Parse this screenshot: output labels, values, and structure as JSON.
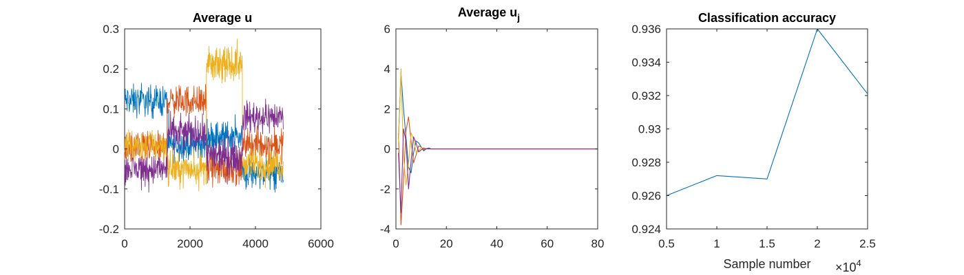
{
  "chart_data": [
    {
      "type": "line",
      "title": "Average u",
      "xlabel": "",
      "ylabel": "",
      "xlim": [
        0,
        6000
      ],
      "ylim": [
        -0.2,
        0.3
      ],
      "xticks": [
        0,
        2000,
        4000,
        6000
      ],
      "yticks": [
        -0.2,
        -0.1,
        0,
        0.1,
        0.2,
        0.3
      ],
      "xtick_labels": [
        "0",
        "2000",
        "4000",
        "6000"
      ],
      "ytick_labels": [
        "-0.2",
        "-0.1",
        "0",
        "0.1",
        "0.2",
        "0.3"
      ],
      "noise_amplitude": 0.035,
      "series": [
        {
          "color": "#0072BD",
          "segments": [
            {
              "x": [
                0,
                1300
              ],
              "mean": 0.12
            },
            {
              "x": [
                1300,
                2500
              ],
              "mean": 0.01
            },
            {
              "x": [
                2500,
                3600
              ],
              "mean": 0.03
            },
            {
              "x": [
                3600,
                4850
              ],
              "mean": -0.06
            }
          ]
        },
        {
          "color": "#D95319",
          "segments": [
            {
              "x": [
                0,
                1300
              ],
              "mean": 0.0
            },
            {
              "x": [
                1300,
                2500
              ],
              "mean": 0.12
            },
            {
              "x": [
                2500,
                3600
              ],
              "mean": -0.05
            },
            {
              "x": [
                3600,
                4850
              ],
              "mean": 0.01
            }
          ]
        },
        {
          "color": "#EDB120",
          "segments": [
            {
              "x": [
                0,
                1300
              ],
              "mean": 0.01
            },
            {
              "x": [
                1300,
                2500
              ],
              "mean": -0.05
            },
            {
              "x": [
                2500,
                3600
              ],
              "mean": 0.21
            },
            {
              "x": [
                3600,
                4850
              ],
              "mean": -0.04
            }
          ]
        },
        {
          "color": "#7E2F8E",
          "segments": [
            {
              "x": [
                0,
                1300
              ],
              "mean": -0.05
            },
            {
              "x": [
                1300,
                2500
              ],
              "mean": 0.04
            },
            {
              "x": [
                2500,
                3600
              ],
              "mean": -0.02
            },
            {
              "x": [
                3600,
                4850
              ],
              "mean": 0.08
            }
          ]
        }
      ]
    },
    {
      "type": "line",
      "title": "Average u",
      "title_subscript": "j",
      "xlabel": "",
      "ylabel": "",
      "xlim": [
        0,
        80
      ],
      "ylim": [
        -4,
        6
      ],
      "xticks": [
        0,
        20,
        40,
        60,
        80
      ],
      "yticks": [
        -4,
        -2,
        0,
        2,
        4,
        6
      ],
      "xtick_labels": [
        "0",
        "20",
        "40",
        "60",
        "80"
      ],
      "ytick_labels": [
        "-4",
        "-2",
        "0",
        "2",
        "4",
        "6"
      ],
      "x": [
        1,
        2,
        3,
        4,
        5,
        6,
        7,
        8,
        9,
        10,
        11,
        12,
        13,
        14,
        15,
        16,
        18,
        20,
        25,
        30,
        40,
        50,
        60,
        70,
        80
      ],
      "series": [
        {
          "color": "#0072BD",
          "values": [
            0.5,
            3.8,
            2.0,
            0.6,
            -0.9,
            -1.2,
            -0.2,
            0.4,
            0.3,
            0.1,
            -0.1,
            0.0,
            0.05,
            0.0,
            0.0,
            0.0,
            0.0,
            0.0,
            0.0,
            0.0,
            0.0,
            0.0,
            0.0,
            0.0,
            0.0
          ]
        },
        {
          "color": "#D95319",
          "values": [
            0.8,
            -3.8,
            -1.6,
            0.9,
            1.6,
            0.4,
            -0.7,
            -0.3,
            0.15,
            0.1,
            -0.05,
            0.02,
            0.0,
            0.0,
            0.0,
            0.0,
            0.0,
            0.0,
            0.0,
            0.0,
            0.0,
            0.0,
            0.0,
            0.0,
            0.0
          ]
        },
        {
          "color": "#EDB120",
          "values": [
            0.3,
            4.0,
            -0.4,
            -1.8,
            -0.8,
            0.8,
            0.5,
            -0.2,
            -0.1,
            0.05,
            0.05,
            0.0,
            0.0,
            0.0,
            0.0,
            0.0,
            0.0,
            0.0,
            0.0,
            0.0,
            0.0,
            0.0,
            0.0,
            0.0,
            0.0
          ]
        },
        {
          "color": "#7E2F8E",
          "values": [
            -0.2,
            -3.2,
            1.0,
            0.4,
            -2.0,
            -0.6,
            0.6,
            0.3,
            -0.15,
            -0.05,
            0.03,
            0.0,
            0.0,
            0.0,
            0.0,
            0.0,
            0.0,
            0.0,
            0.0,
            0.0,
            0.0,
            0.0,
            0.0,
            0.0,
            0.0
          ]
        }
      ]
    },
    {
      "type": "line",
      "title": "Classification accuracy",
      "xlabel": "Sample number",
      "ylabel": "",
      "xlim": [
        0.5,
        2.5
      ],
      "ylim": [
        0.924,
        0.936
      ],
      "xticks": [
        0.5,
        1,
        1.5,
        2,
        2.5
      ],
      "yticks": [
        0.924,
        0.926,
        0.928,
        0.93,
        0.932,
        0.934,
        0.936
      ],
      "xtick_labels": [
        "0.5",
        "1",
        "1.5",
        "2",
        "2.5"
      ],
      "ytick_labels": [
        "0.924",
        "0.926",
        "0.928",
        "0.93",
        "0.932",
        "0.934",
        "0.936"
      ],
      "x_multiplier_base": "×10",
      "x_multiplier_exponent": "4",
      "x": [
        0.5,
        1.0,
        1.5,
        2.0,
        2.5
      ],
      "series": [
        {
          "color": "#0072BD",
          "values": [
            0.926,
            0.9272,
            0.927,
            0.936,
            0.9321
          ]
        }
      ]
    }
  ]
}
